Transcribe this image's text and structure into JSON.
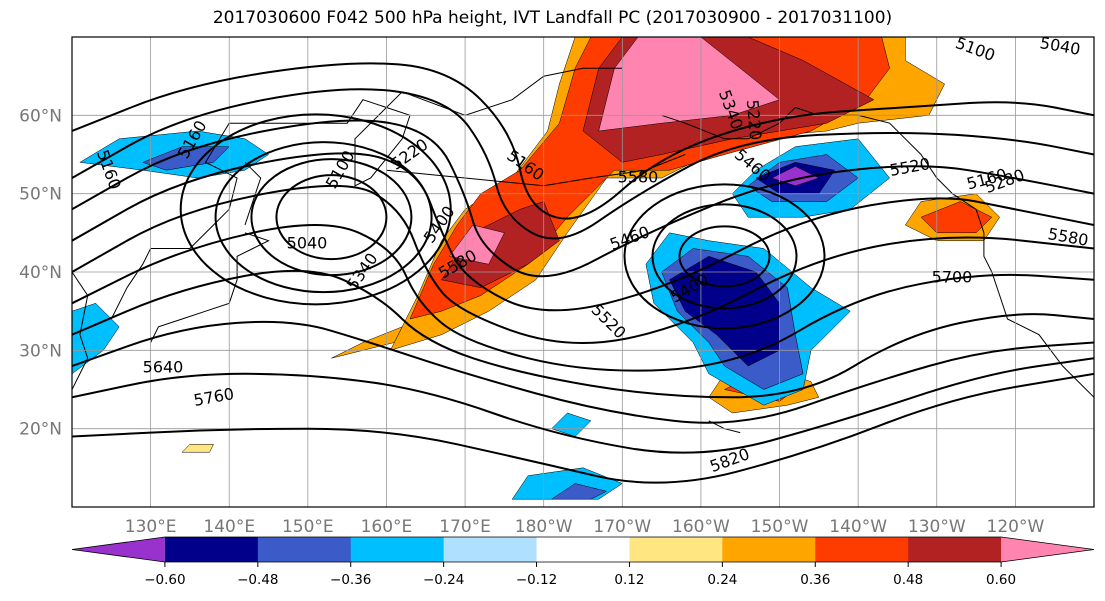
{
  "chart_data": {
    "type": "heatmap",
    "title": "2017030600 F042 500 hPa height, IVT Landfall PC (2017030900 - 2017031100)",
    "projection": "Plate Carree map, North Pacific",
    "lon_range": [
      120,
      250
    ],
    "lat_range": [
      10,
      70
    ],
    "grid": true,
    "x_ticks": [
      "130°E",
      "140°E",
      "150°E",
      "160°E",
      "170°E",
      "180°W",
      "170°W",
      "160°W",
      "150°W",
      "140°W",
      "130°W",
      "120°W"
    ],
    "y_ticks": [
      "20°N",
      "30°N",
      "40°N",
      "50°N",
      "60°N"
    ],
    "colorbar": {
      "boundaries": [
        "−0.60",
        "−0.48",
        "−0.36",
        "−0.24",
        "−0.12",
        "0.12",
        "0.24",
        "0.36",
        "0.48",
        "0.60"
      ],
      "colors": [
        "#9932cc",
        "#00008b",
        "#3a5bc8",
        "#00bfff",
        "#b0e0ff",
        "#ffffff",
        "#ffe680",
        "#ffa500",
        "#ff3c00",
        "#b22222",
        "#ff85b0"
      ],
      "extend": "both"
    },
    "contour_labels": [
      "5040",
      "5100",
      "5160",
      "5160",
      "5160",
      "5220",
      "5220",
      "5280",
      "5340",
      "5340",
      "5400",
      "5400",
      "5460",
      "5460",
      "5520",
      "5580",
      "5580",
      "5640",
      "5700",
      "5760",
      "5820",
      "5100",
      "5040",
      "5160",
      "5580",
      "5520"
    ]
  },
  "colors": {
    "frame": "#000000",
    "grid": "#999999",
    "tick_label": "#777777"
  }
}
